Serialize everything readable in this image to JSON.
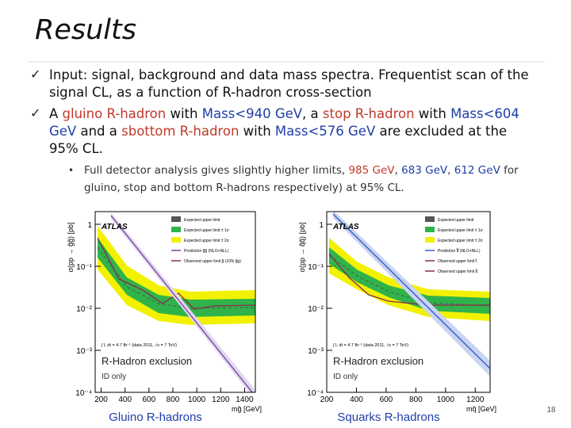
{
  "title": "Results",
  "bullets": [
    {
      "parts": [
        "Input: signal, background and data mass spectra. Frequentist scan of the signal CL, as a function of R-hadron cross-section"
      ]
    },
    {
      "parts": [
        "A ",
        "gluino R-hadron",
        " with ",
        "Mass<940 GeV",
        ", a ",
        "stop R-hadron",
        " with ",
        "Mass<604 GeV",
        "  and a ",
        "sbottom R-hadron",
        " with ",
        "Mass<576 GeV",
        " are excluded at the 95% CL."
      ]
    }
  ],
  "sub_bullet": {
    "parts": [
      "Full detector analysis gives slightly higher limits,  ",
      "985 GeV",
      ", ",
      "683 GeV",
      ", ",
      "612 GeV",
      " for gluino, stop and bottom R-hadrons respectively) at 95% CL."
    ]
  },
  "plots": [
    {
      "caption": "Gluino R-hadrons",
      "xlabel": "m<sub>g̃</sub> [GeV]",
      "ylabel": "σ(pp → g̃g̃) [pb]",
      "experiment": "ATLAS",
      "luminosity": "∫ L dt = 4.7 fb⁻¹ (data 2011, √s = 7 TeV)",
      "heading": "R-Hadron exclusion",
      "subheading": "ID only",
      "legend": [
        "Expected upper limit",
        "Expected upper limit ± 1σ",
        "Expected upper limit ± 2σ",
        "Prediction g̃g̃ (NLO+NLL)",
        "Observed upper limit g̃ (10% g̃g)"
      ],
      "xlim": [
        150,
        1490
      ],
      "xticks": [
        200,
        400,
        600,
        800,
        1000,
        1200,
        1400
      ],
      "log_y": true,
      "ylim": [
        0.0001,
        2
      ],
      "yticks": [
        {
          "value": 0.0001,
          "label": "10⁻⁴"
        },
        {
          "value": 0.001,
          "label": "10⁻³"
        },
        {
          "value": 0.01,
          "label": "10⁻²"
        },
        {
          "value": 0.1,
          "label": "10⁻¹"
        },
        1
      ]
    },
    {
      "caption": "Squarks  R-hadrons",
      "xlabel": "m<sub>q̃</sub> [GeV]",
      "ylabel": "σ(pp → q̃q̃) [pb]",
      "experiment": "ATLAS",
      "luminosity": "∫ L dt = 4.7 fb⁻¹ (data 2011, √s = 7 TeV)",
      "heading": "R-Hadron exclusion",
      "subheading": "ID only",
      "legend": [
        "Expected upper limit",
        "Expected upper limit ± 1σ",
        "Expected upper limit ± 2σ",
        "Prediction t̃t̃ (NLO+NLL)",
        "Observed upper limit t̃",
        "Observed upper limit b̃"
      ],
      "xlim": [
        200,
        1300
      ],
      "xticks": [
        200,
        400,
        600,
        800,
        1000,
        1200
      ],
      "log_y": true,
      "ylim": [
        0.0001,
        2
      ],
      "yticks": [
        {
          "value": 0.0001,
          "label": "10⁻⁴"
        },
        {
          "value": 0.001,
          "label": "10⁻³"
        },
        {
          "value": 0.01,
          "label": "10⁻²"
        },
        {
          "value": 0.1,
          "label": "10⁻¹"
        },
        1
      ]
    }
  ],
  "page_number": "18"
}
